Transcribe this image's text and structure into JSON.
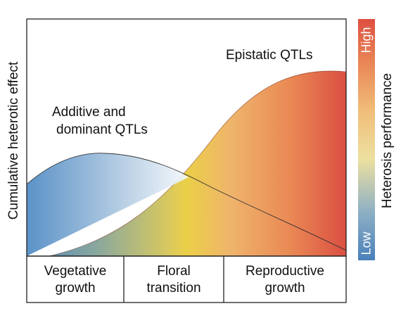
{
  "y_axis_label": "Cumulative heterotic effect",
  "colorbar": {
    "title": "Heterosis performance",
    "high_label": "High",
    "low_label": "Low",
    "colors": [
      "#4f86bd",
      "#9cb9c8",
      "#f0dc9c",
      "#f0b873",
      "#e05a45"
    ]
  },
  "annotations": {
    "epistatic": "Epistatic QTLs",
    "additive_line1": "Additive and",
    "additive_line2": "dominant QTLs"
  },
  "stages": [
    {
      "line1": "Vegetative",
      "line2": "growth"
    },
    {
      "line1": "Floral",
      "line2": "transition"
    },
    {
      "line1": "Reproductive",
      "line2": "growth"
    }
  ],
  "colors": {
    "additive_fill_start": "#5b92c8",
    "additive_fill_end": "#ffffff",
    "epistatic_fill": [
      "#4f86bd",
      "#e9cf48",
      "#f0b26a",
      "#e7794e",
      "#da5243"
    ],
    "outline": "#222222"
  }
}
